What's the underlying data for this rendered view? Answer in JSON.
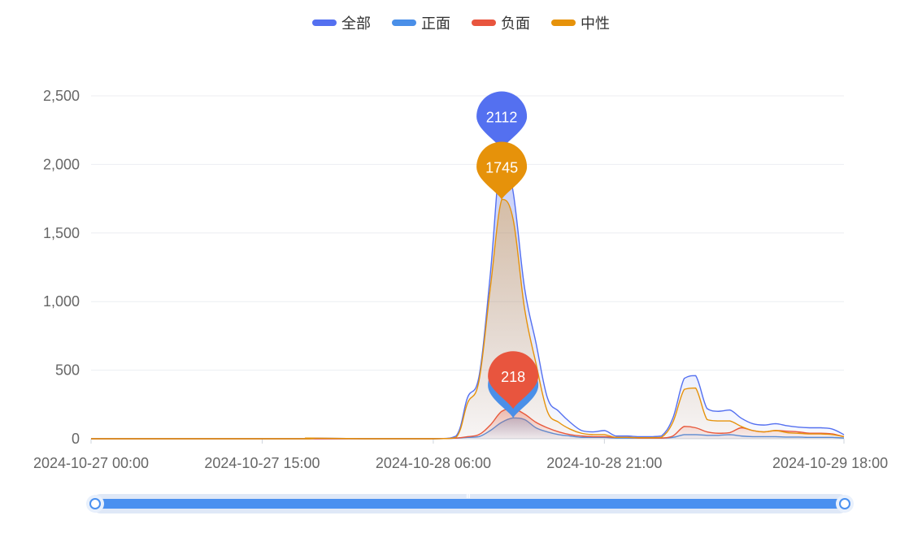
{
  "chart_data": {
    "type": "area",
    "title": "",
    "xlabel": "",
    "ylabel": "",
    "ylim": [
      0,
      2500
    ],
    "yticks": [
      0,
      500,
      1000,
      1500,
      2000,
      2500
    ],
    "ytick_labels": [
      "0",
      "500",
      "1,000",
      "1,500",
      "2,000",
      "2,500"
    ],
    "xlim": [
      "2024-10-27 00:00",
      "2024-10-29 18:00"
    ],
    "xticks": [
      "2024-10-27 00:00",
      "2024-10-27 15:00",
      "2024-10-28 06:00",
      "2024-10-28 21:00",
      "2024-10-29 18:00"
    ],
    "grid": true,
    "legend_position": "top",
    "x": [
      "2024-10-27 00:00",
      "2024-10-27 18:00",
      "2024-10-27 19:00",
      "2024-10-28 00:00",
      "2024-10-28 06:00",
      "2024-10-28 08:00",
      "2024-10-28 09:00",
      "2024-10-28 10:00",
      "2024-10-28 11:00",
      "2024-10-28 12:00",
      "2024-10-28 13:00",
      "2024-10-28 14:00",
      "2024-10-28 15:00",
      "2024-10-28 16:00",
      "2024-10-28 17:00",
      "2024-10-28 18:00",
      "2024-10-28 19:00",
      "2024-10-28 20:00",
      "2024-10-28 21:00",
      "2024-10-28 22:00",
      "2024-10-28 23:00",
      "2024-10-29 00:00",
      "2024-10-29 01:00",
      "2024-10-29 02:00",
      "2024-10-29 03:00",
      "2024-10-29 04:00",
      "2024-10-29 05:00",
      "2024-10-29 06:00",
      "2024-10-29 07:00",
      "2024-10-29 08:00",
      "2024-10-29 09:00",
      "2024-10-29 10:00",
      "2024-10-29 11:00",
      "2024-10-29 12:00",
      "2024-10-29 13:00",
      "2024-10-29 14:00",
      "2024-10-29 15:00",
      "2024-10-29 16:00",
      "2024-10-29 17:00",
      "2024-10-29 18:00"
    ],
    "series": [
      {
        "name": "全部",
        "color": "#5470f0",
        "values": [
          0,
          0,
          5,
          0,
          0,
          20,
          300,
          450,
          1200,
          2112,
          1800,
          1100,
          700,
          300,
          200,
          120,
          60,
          50,
          60,
          20,
          20,
          15,
          15,
          20,
          150,
          440,
          460,
          220,
          200,
          210,
          150,
          110,
          100,
          110,
          95,
          85,
          80,
          80,
          70,
          30
        ],
        "max_label": 2112
      },
      {
        "name": "正面",
        "color": "#4a8fe8",
        "values": [
          0,
          0,
          0,
          0,
          0,
          5,
          10,
          15,
          60,
          120,
          152,
          140,
          80,
          50,
          30,
          20,
          10,
          10,
          10,
          5,
          5,
          5,
          5,
          5,
          10,
          30,
          30,
          25,
          25,
          30,
          20,
          15,
          15,
          15,
          12,
          12,
          10,
          10,
          10,
          5
        ],
        "max_label": 152
      },
      {
        "name": "负面",
        "color": "#e8553e",
        "values": [
          0,
          0,
          0,
          0,
          0,
          5,
          15,
          30,
          100,
          200,
          218,
          180,
          120,
          80,
          50,
          30,
          20,
          15,
          15,
          10,
          10,
          5,
          5,
          5,
          20,
          90,
          80,
          50,
          40,
          45,
          80,
          60,
          50,
          60,
          55,
          50,
          40,
          40,
          35,
          15
        ],
        "max_label": 218
      },
      {
        "name": "中性",
        "color": "#e6920a",
        "values": [
          0,
          0,
          5,
          0,
          0,
          10,
          260,
          420,
          1100,
          1745,
          1600,
          950,
          550,
          200,
          120,
          70,
          40,
          30,
          30,
          10,
          10,
          8,
          8,
          10,
          120,
          360,
          370,
          140,
          130,
          130,
          90,
          60,
          50,
          60,
          45,
          40,
          35,
          35,
          30,
          15
        ],
        "max_label": 1745
      }
    ]
  },
  "legend": {
    "items": [
      {
        "label": "全部",
        "color": "#5470f0"
      },
      {
        "label": "正面",
        "color": "#4a8fe8"
      },
      {
        "label": "负面",
        "color": "#e8553e"
      },
      {
        "label": "中性",
        "color": "#e6920a"
      }
    ]
  },
  "zoom": {
    "start": 0,
    "end": 100,
    "grip_text": "III"
  }
}
